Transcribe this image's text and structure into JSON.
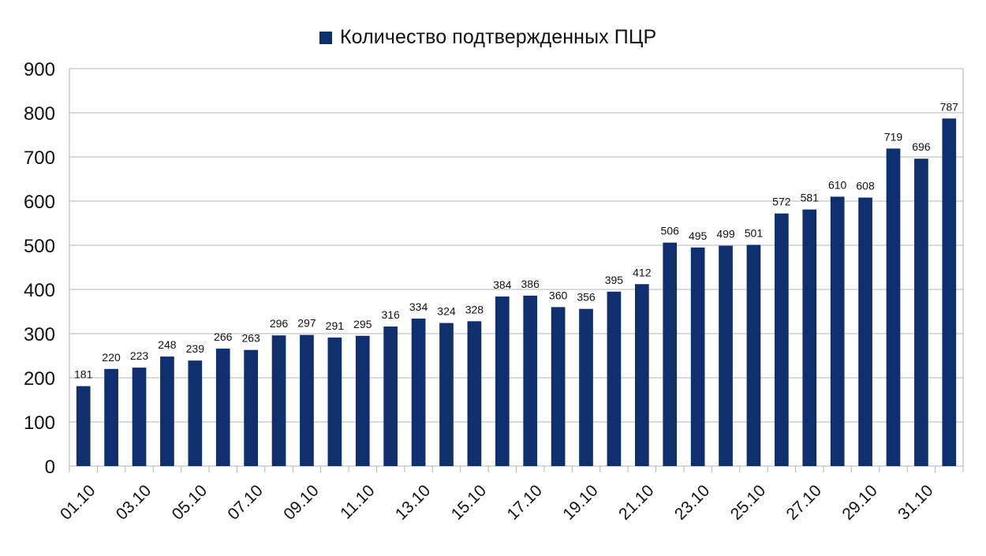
{
  "chart_data": {
    "type": "bar",
    "title": "",
    "xlabel": "",
    "ylabel": "",
    "ylim": [
      0,
      900
    ],
    "ytick_step": 100,
    "grid": true,
    "legend_position": "top-center",
    "bar_color": "#0f2f6e",
    "categories": [
      "01.10",
      "02.10",
      "03.10",
      "04.10",
      "05.10",
      "06.10",
      "07.10",
      "08.10",
      "09.10",
      "10.10",
      "11.10",
      "12.10",
      "13.10",
      "14.10",
      "15.10",
      "16.10",
      "17.10",
      "18.10",
      "19.10",
      "20.10",
      "21.10",
      "22.10",
      "23.10",
      "24.10",
      "25.10",
      "26.10",
      "27.10",
      "28.10",
      "29.10",
      "30.10",
      "31.10",
      "01.11"
    ],
    "x_tick_labels_shown": [
      "01.10",
      "03.10",
      "05.10",
      "07.10",
      "09.10",
      "11.10",
      "13.10",
      "15.10",
      "17.10",
      "19.10",
      "21.10",
      "23.10",
      "25.10",
      "27.10",
      "29.10",
      "31.10"
    ],
    "series": [
      {
        "name": "Количество подтвержденных ПЦР",
        "values": [
          181,
          220,
          223,
          248,
          239,
          266,
          263,
          296,
          297,
          291,
          295,
          316,
          334,
          324,
          328,
          384,
          386,
          360,
          356,
          395,
          412,
          506,
          495,
          499,
          501,
          572,
          581,
          610,
          608,
          719,
          696,
          787
        ]
      }
    ]
  }
}
